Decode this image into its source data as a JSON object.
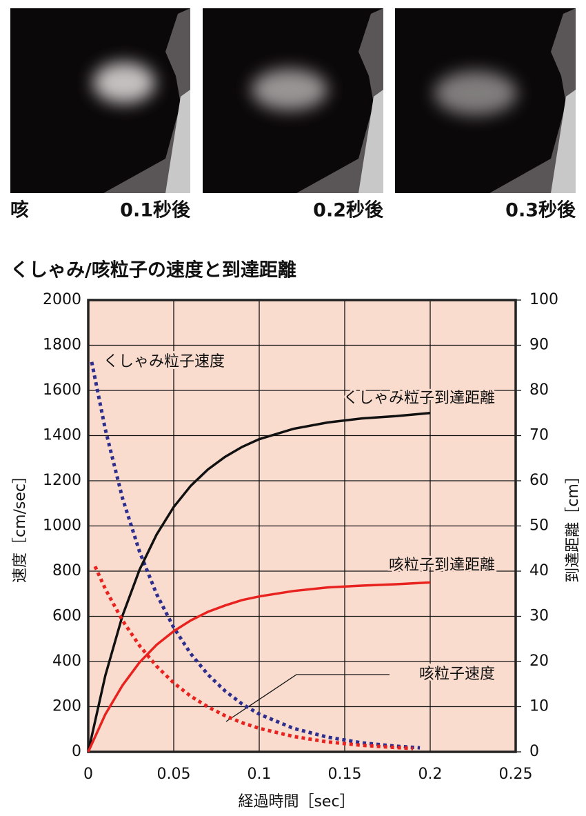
{
  "photos": [
    {
      "label": "咳",
      "time": "0.1秒後"
    },
    {
      "time": "0.2秒後"
    },
    {
      "time": "0.3秒後"
    }
  ],
  "chart_data": {
    "type": "line",
    "title": "くしゃみ/咳粒子の速度と到達距離",
    "xlabel": "経過時間［sec］",
    "ylabel": "速度［cm/sec］",
    "y2label": "到達距離［cm］",
    "xlim": [
      0,
      0.25
    ],
    "xticks": [
      0,
      0.05,
      0.1,
      0.15,
      0.2,
      0.25
    ],
    "ylim": [
      0,
      2000
    ],
    "yticks": [
      0,
      200,
      400,
      600,
      800,
      1000,
      1200,
      1400,
      1600,
      1800,
      2000
    ],
    "y2lim": [
      0,
      100
    ],
    "y2ticks": [
      0,
      10,
      20,
      30,
      40,
      50,
      60,
      70,
      80,
      90,
      100
    ],
    "grid": true,
    "background": "#fadccf",
    "series": [
      {
        "name": "くしゃみ粒子速度",
        "color": "#2e2e8c",
        "style": "dotted",
        "x": [
          0.002,
          0.01,
          0.02,
          0.03,
          0.04,
          0.05,
          0.06,
          0.07,
          0.08,
          0.09,
          0.1,
          0.12,
          0.14,
          0.16,
          0.18,
          0.194
        ],
        "values": [
          1726,
          1427,
          1124,
          886,
          698,
          550,
          434,
          342,
          270,
          212,
          167,
          104,
          65,
          40,
          25,
          18
        ]
      },
      {
        "name": "くしゃみ粒子到達距離",
        "color": "#111111",
        "style": "solid",
        "axis": "y2",
        "x": [
          0,
          0.01,
          0.02,
          0.03,
          0.04,
          0.05,
          0.06,
          0.07,
          0.08,
          0.09,
          0.1,
          0.12,
          0.14,
          0.16,
          0.18,
          0.2
        ],
        "values": [
          0,
          16.9,
          30.1,
          40.3,
          48.1,
          54.2,
          58.9,
          62.5,
          65.3,
          67.5,
          69.2,
          71.5,
          72.9,
          73.8,
          74.3,
          75
        ]
      },
      {
        "name": "咳粒子到達距離",
        "color": "#e8231f",
        "style": "solid",
        "axis": "y2",
        "x": [
          0,
          0.01,
          0.02,
          0.03,
          0.04,
          0.05,
          0.06,
          0.07,
          0.08,
          0.09,
          0.1,
          0.12,
          0.14,
          0.16,
          0.18,
          0.2
        ],
        "values": [
          0,
          8.3,
          14.7,
          19.8,
          23.7,
          26.7,
          29.1,
          31.0,
          32.4,
          33.6,
          34.4,
          35.6,
          36.4,
          36.8,
          37.1,
          37.5
        ]
      },
      {
        "name": "咳粒子速度",
        "color": "#e8231f",
        "style": "dotted",
        "x": [
          0.004,
          0.01,
          0.02,
          0.03,
          0.04,
          0.05,
          0.06,
          0.07,
          0.08,
          0.09,
          0.1,
          0.12,
          0.14,
          0.16,
          0.18,
          0.19
        ],
        "values": [
          821,
          721,
          582,
          470,
          379,
          305,
          246,
          199,
          160,
          129,
          104,
          68,
          44,
          29,
          19,
          15
        ]
      }
    ]
  }
}
